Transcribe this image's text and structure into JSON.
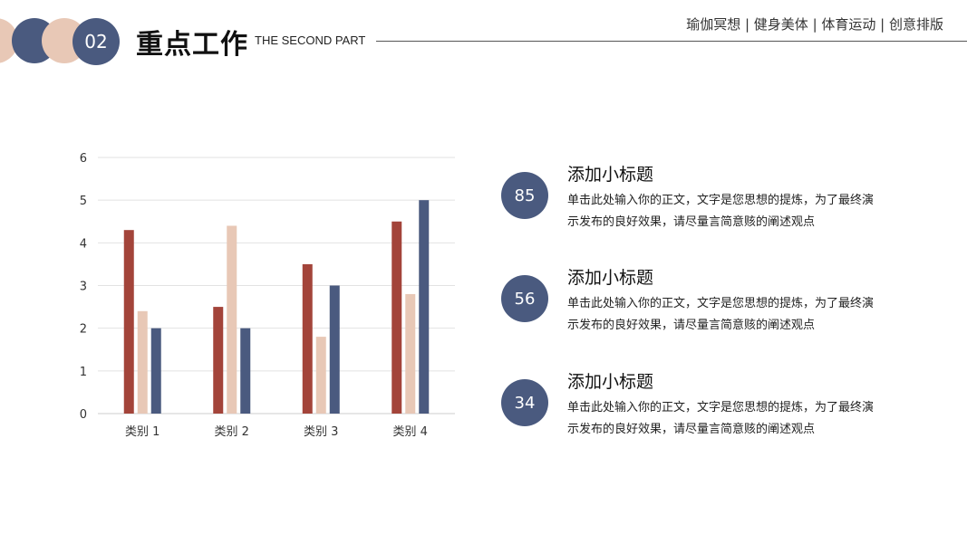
{
  "header": {
    "number": "02",
    "title": "重点工作",
    "subtitle": "THE SECOND PART",
    "tagline": "瑜伽冥想 | 健身美体 | 体育运动 | 创意排版"
  },
  "colors": {
    "navy": "#4a5a7f",
    "peach": "#e8c8b6",
    "rust": "#a3443a"
  },
  "chart_data": {
    "type": "bar",
    "categories": [
      "类别 1",
      "类别 2",
      "类别 3",
      "类别 4"
    ],
    "series": [
      {
        "values": [
          4.3,
          2.5,
          3.5,
          4.5
        ],
        "color": "#a3443a"
      },
      {
        "values": [
          2.4,
          4.4,
          1.8,
          2.8
        ],
        "color": "#e8c8b6"
      },
      {
        "values": [
          2.0,
          2.0,
          3.0,
          5.0
        ],
        "color": "#4a5a7f"
      }
    ],
    "yticks": [
      "0",
      "1",
      "2",
      "3",
      "4",
      "5",
      "6"
    ],
    "ylim": [
      0,
      6
    ],
    "grid": true,
    "title": "",
    "xlabel": "",
    "ylabel": ""
  },
  "items": [
    {
      "value": "85",
      "title": "添加小标题",
      "body": "单击此处输入你的正文，文字是您思想的提炼，为了最终演示发布的良好效果，请尽量言简意赅的阐述观点"
    },
    {
      "value": "56",
      "title": "添加小标题",
      "body": "单击此处输入你的正文，文字是您思想的提炼，为了最终演示发布的良好效果，请尽量言简意赅的阐述观点"
    },
    {
      "value": "34",
      "title": "添加小标题",
      "body": "单击此处输入你的正文，文字是您思想的提炼，为了最终演示发布的良好效果，请尽量言简意赅的阐述观点"
    }
  ]
}
